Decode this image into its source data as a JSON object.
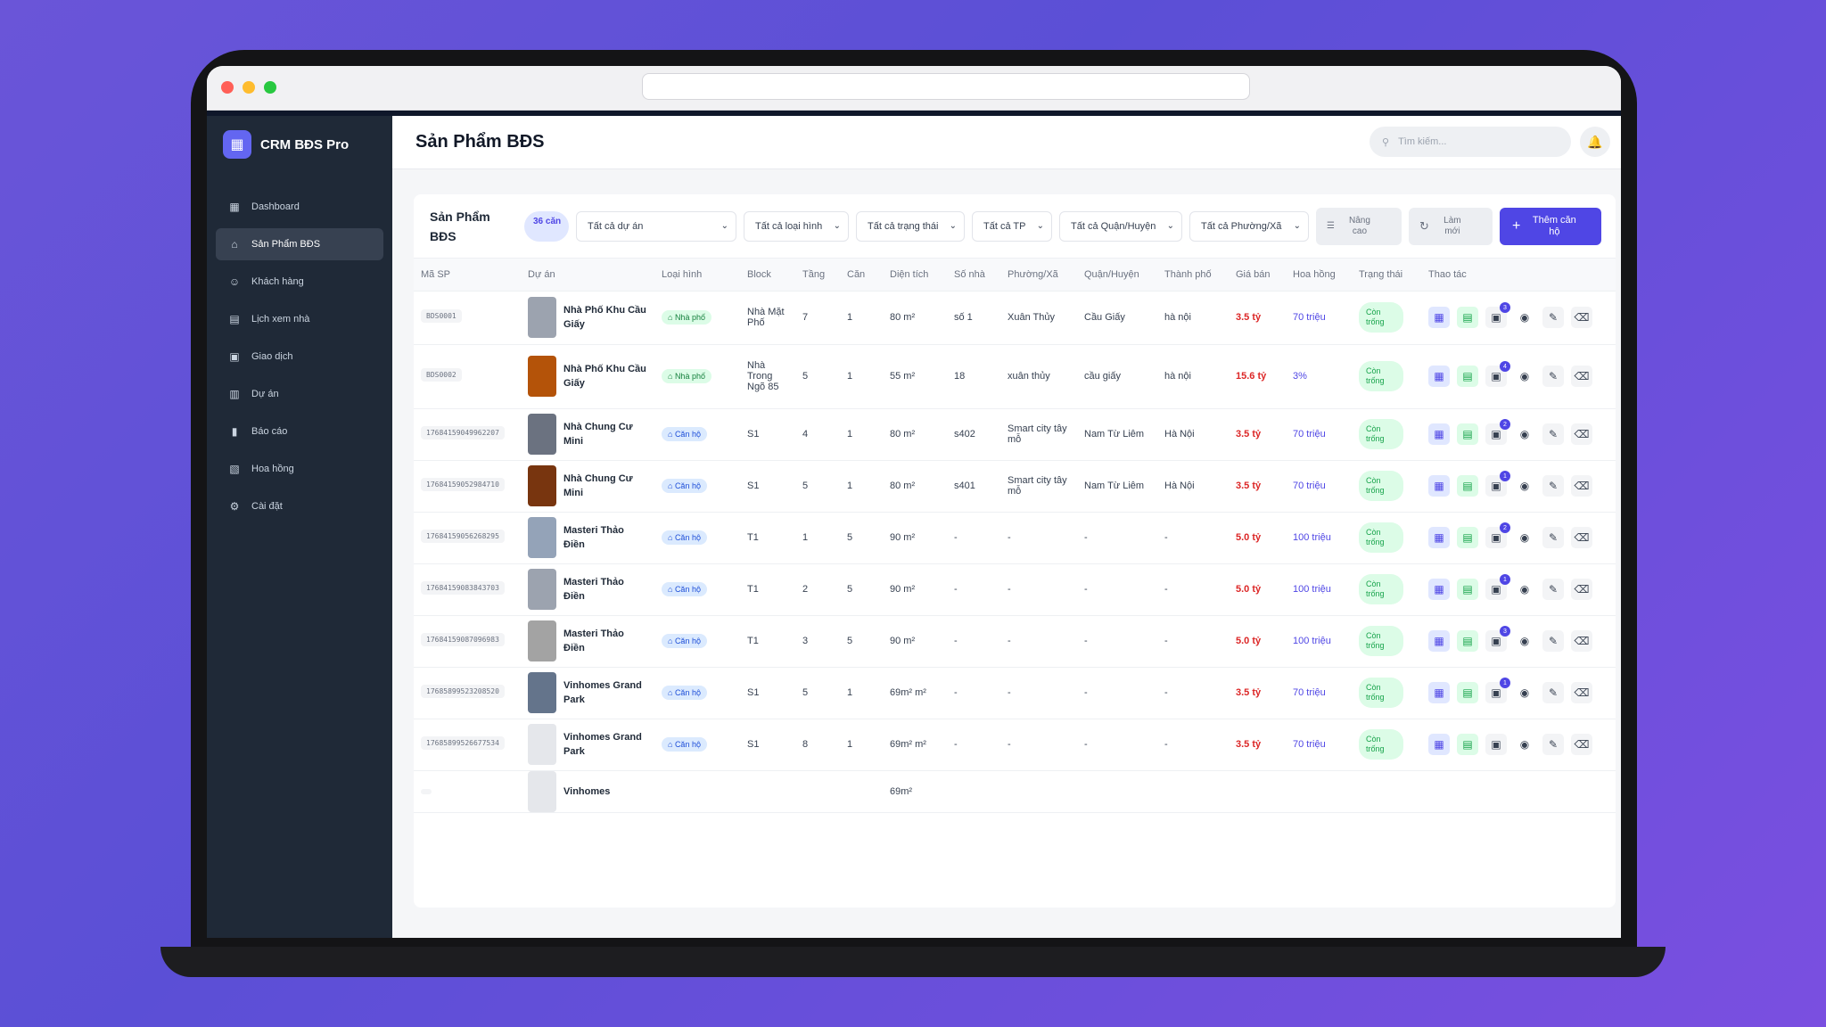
{
  "app": {
    "name": "CRM BĐS Pro"
  },
  "sidebar": {
    "items": [
      {
        "label": "Dashboard",
        "icon": "dashboard-icon",
        "active": false
      },
      {
        "label": "Sản Phẩm BĐS",
        "icon": "home-icon",
        "active": true
      },
      {
        "label": "Khách hàng",
        "icon": "people-icon",
        "active": false
      },
      {
        "label": "Lịch xem nhà",
        "icon": "calendar-icon",
        "active": false
      },
      {
        "label": "Giao dịch",
        "icon": "transaction-icon",
        "active": false
      },
      {
        "label": "Dự án",
        "icon": "building-icon",
        "active": false
      },
      {
        "label": "Báo cáo",
        "icon": "bar-chart-icon",
        "active": false
      },
      {
        "label": "Hoa hồng",
        "icon": "wallet-icon",
        "active": false
      },
      {
        "label": "Cài đặt",
        "icon": "gear-icon",
        "active": false
      }
    ]
  },
  "header": {
    "title": "Sản Phẩm BĐS",
    "search_placeholder": "Tìm kiếm..."
  },
  "toolbar": {
    "title": "Sản Phẩm BĐS",
    "count": "36 căn",
    "filters": [
      "Tất cả dự án",
      "Tất cả loại hình",
      "Tất cả trạng thái",
      "Tất cả TP",
      "Tất cả Quận/Huyện",
      "Tất cả Phường/Xã"
    ],
    "advanced_label": "Nâng cao",
    "refresh_label": "Làm mới",
    "add_label": "Thêm căn hộ"
  },
  "table": {
    "columns": [
      "Mã SP",
      "Dự án",
      "Loại hình",
      "Block",
      "Tầng",
      "Căn",
      "Diện tích",
      "Số nhà",
      "Phường/Xã",
      "Quận/Huyện",
      "Thành phố",
      "Giá bán",
      "Hoa hồng",
      "Trạng thái",
      "Thao tác"
    ],
    "rows": [
      {
        "code": "BDS0001",
        "project": "Nhà Phố Khu Cầu Giấy",
        "type": "Nhà phố",
        "type_color": "green",
        "block": "Nhà Mặt Phố",
        "floor": "7",
        "unit": "1",
        "area": "80 m²",
        "house_no": "số 1",
        "ward": "Xuân Thủy",
        "district": "Cầu Giấy",
        "city": "hà nội",
        "price": "3.5 tỷ",
        "commission": "70 triệu",
        "status": "Còn trống",
        "img_badge": "3"
      },
      {
        "code": "BDS0002",
        "project": "Nhà Phố Khu Cầu Giấy",
        "type": "Nhà phố",
        "type_color": "green",
        "block": "Nhà Trong Ngõ 85",
        "floor": "5",
        "unit": "1",
        "area": "55 m²",
        "house_no": "18",
        "ward": "xuân thủy",
        "district": "cầu giấy",
        "city": "hà nội",
        "price": "15.6 tỷ",
        "commission": "3%",
        "status": "Còn trống",
        "img_badge": "4"
      },
      {
        "code": "17684159049962207",
        "project": "Nhà Chung Cư Mini",
        "type": "Căn hộ",
        "type_color": "blue",
        "block": "S1",
        "floor": "4",
        "unit": "1",
        "area": "80 m²",
        "house_no": "s402",
        "ward": "Smart city tây mỗ",
        "district": "Nam Từ Liêm",
        "city": "Hà Nội",
        "price": "3.5 tỷ",
        "commission": "70 triệu",
        "status": "Còn trống",
        "img_badge": "2"
      },
      {
        "code": "17684159052984710",
        "project": "Nhà Chung Cư Mini",
        "type": "Căn hộ",
        "type_color": "blue",
        "block": "S1",
        "floor": "5",
        "unit": "1",
        "area": "80 m²",
        "house_no": "s401",
        "ward": "Smart city tây mỗ",
        "district": "Nam Từ Liêm",
        "city": "Hà Nội",
        "price": "3.5 tỷ",
        "commission": "70 triệu",
        "status": "Còn trống",
        "img_badge": "1"
      },
      {
        "code": "17684159056268295",
        "project": "Masteri Thảo Điền",
        "type": "Căn hộ",
        "type_color": "blue",
        "block": "T1",
        "floor": "1",
        "unit": "5",
        "area": "90 m²",
        "house_no": "-",
        "ward": "-",
        "district": "-",
        "city": "-",
        "price": "5.0 tỷ",
        "commission": "100 triệu",
        "status": "Còn trống",
        "img_badge": "2"
      },
      {
        "code": "17684159083843703",
        "project": "Masteri Thảo Điền",
        "type": "Căn hộ",
        "type_color": "blue",
        "block": "T1",
        "floor": "2",
        "unit": "5",
        "area": "90 m²",
        "house_no": "-",
        "ward": "-",
        "district": "-",
        "city": "-",
        "price": "5.0 tỷ",
        "commission": "100 triệu",
        "status": "Còn trống",
        "img_badge": "1"
      },
      {
        "code": "17684159087096983",
        "project": "Masteri Thảo Điền",
        "type": "Căn hộ",
        "type_color": "blue",
        "block": "T1",
        "floor": "3",
        "unit": "5",
        "area": "90 m²",
        "house_no": "-",
        "ward": "-",
        "district": "-",
        "city": "-",
        "price": "5.0 tỷ",
        "commission": "100 triệu",
        "status": "Còn trống",
        "img_badge": "3"
      },
      {
        "code": "17685899523208520",
        "project": "Vinhomes Grand Park",
        "type": "Căn hộ",
        "type_color": "blue",
        "block": "S1",
        "floor": "5",
        "unit": "1",
        "area": "69m² m²",
        "house_no": "-",
        "ward": "-",
        "district": "-",
        "city": "-",
        "price": "3.5 tỷ",
        "commission": "70 triệu",
        "status": "Còn trống",
        "img_badge": "1"
      },
      {
        "code": "17685899526677534",
        "project": "Vinhomes Grand Park",
        "type": "Căn hộ",
        "type_color": "blue",
        "block": "S1",
        "floor": "8",
        "unit": "1",
        "area": "69m² m²",
        "house_no": "-",
        "ward": "-",
        "district": "-",
        "city": "-",
        "price": "3.5 tỷ",
        "commission": "70 triệu",
        "status": "Còn trống",
        "img_badge": ""
      },
      {
        "code": "",
        "project": "Vinhomes",
        "type": "",
        "type_color": "blue",
        "block": "",
        "floor": "",
        "unit": "",
        "area": "69m²",
        "house_no": "",
        "ward": "",
        "district": "",
        "city": "",
        "price": "",
        "commission": "",
        "status": "",
        "img_badge": ""
      }
    ]
  },
  "colors": {
    "accent": "#4f46e5",
    "price": "#dc2626",
    "status_bg": "#dcfce7",
    "sidebar_bg": "#1f2937"
  }
}
